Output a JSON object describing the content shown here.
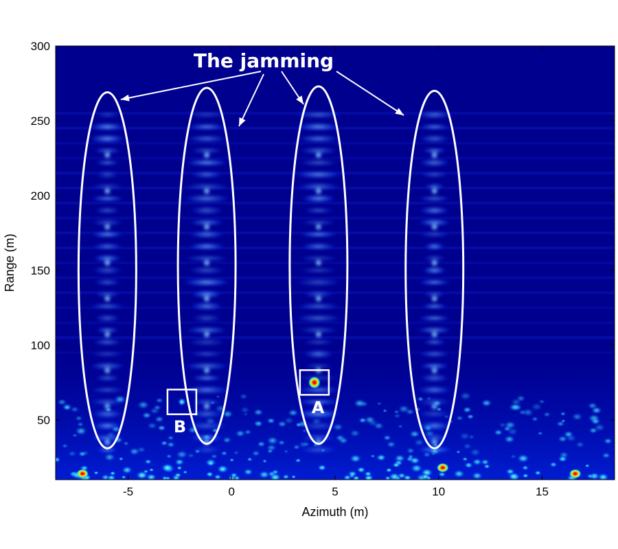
{
  "chart_data": {
    "type": "heatmap",
    "title": "",
    "xlabel": "Azimuth (m)",
    "ylabel": "Range (m)",
    "xlim": [
      -8.5,
      18.5
    ],
    "ylim": [
      10,
      300
    ],
    "xticks": [
      -5,
      0,
      5,
      10,
      15
    ],
    "yticks": [
      50,
      100,
      150,
      200,
      250,
      300
    ],
    "colormap": "jet",
    "background_color": "#00008f",
    "annotations": {
      "jamming_label": "The jamming",
      "target_a_label": "A",
      "target_b_label": "B"
    },
    "jamming_regions": [
      {
        "azimuth": -6.0,
        "range_min": 31,
        "range_max": 269
      },
      {
        "azimuth": -1.2,
        "range_min": 34,
        "range_max": 272
      },
      {
        "azimuth": 4.2,
        "range_min": 34,
        "range_max": 273
      },
      {
        "azimuth": 9.8,
        "range_min": 31,
        "range_max": 270
      }
    ],
    "targets": [
      {
        "name": "A",
        "azimuth": 4.0,
        "range": 75
      },
      {
        "name": "B",
        "azimuth": -2.4,
        "range": 62
      }
    ],
    "bright_returns": [
      {
        "azimuth": 10.2,
        "range": 18
      },
      {
        "azimuth": 16.6,
        "range": 14
      },
      {
        "azimuth": -7.2,
        "range": 14
      }
    ]
  }
}
